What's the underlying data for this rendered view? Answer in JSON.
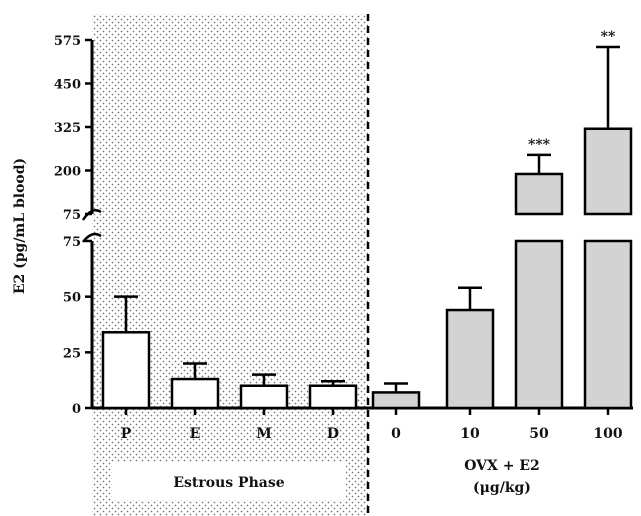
{
  "chart_data": {
    "type": "bar",
    "ylabel": "E2 (pg/mL blood)",
    "y_axis": {
      "broken": true,
      "lower": {
        "range": [
          0,
          75
        ],
        "ticks": [
          "0",
          "25",
          "50",
          "75"
        ]
      },
      "upper": {
        "range": [
          75,
          575
        ],
        "ticks": [
          "75",
          "200",
          "325",
          "450",
          "575"
        ]
      }
    },
    "categories": [
      "P",
      "E",
      "M",
      "D",
      "0",
      "10",
      "50",
      "100"
    ],
    "values": [
      34,
      13,
      10,
      10,
      7,
      44,
      190,
      320
    ],
    "errors": [
      16,
      7,
      5,
      2,
      4,
      10,
      55,
      235
    ],
    "significance": [
      "",
      "",
      "",
      "",
      "",
      "",
      "***",
      "**"
    ],
    "fill_colors": [
      "#ffffff",
      "#ffffff",
      "#ffffff",
      "#ffffff",
      "#d3d3d3",
      "#d3d3d3",
      "#d3d3d3",
      "#d3d3d3"
    ],
    "groups": [
      {
        "label": "Estrous Phase",
        "categories": [
          "P",
          "E",
          "M",
          "D"
        ],
        "shaded": true
      },
      {
        "label_line1": "OVX + E2",
        "label_line2": "(μg/kg)",
        "categories": [
          "0",
          "10",
          "50",
          "100"
        ],
        "shaded": false
      }
    ],
    "group_divider": "dashed"
  }
}
